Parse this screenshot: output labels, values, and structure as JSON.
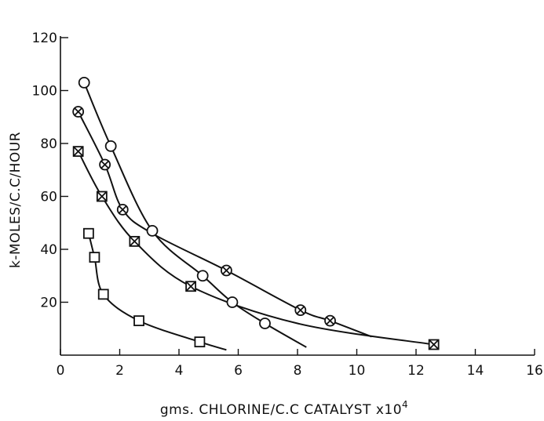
{
  "chart_data": {
    "type": "scatter",
    "title": "",
    "xlabel": "gms. CHLORINE/C.C CATALYST x10",
    "xlabel_superscript": "4",
    "ylabel": "k-MOLES/C.C/HOUR",
    "xlim": [
      0,
      16
    ],
    "ylim": [
      0,
      120
    ],
    "x_ticks": [
      0,
      2,
      4,
      6,
      8,
      10,
      12,
      14,
      16
    ],
    "y_ticks": [
      20,
      40,
      60,
      80,
      100,
      120
    ],
    "x_tick_labels": [
      "0",
      "2",
      "4",
      "6",
      "8",
      "10",
      "12",
      "14",
      "16"
    ],
    "y_tick_labels": [
      "20",
      "40",
      "60",
      "80",
      "100",
      "120"
    ],
    "grid": false,
    "series": [
      {
        "marker": "circle",
        "x": [
          0.8,
          1.7,
          3.1,
          4.8,
          5.8,
          6.9
        ],
        "y": [
          103,
          79,
          47,
          30,
          20,
          12
        ],
        "curve_x": [
          0.8,
          1.7,
          3.1,
          4.8,
          5.8,
          6.9,
          8.3
        ],
        "curve_y": [
          103,
          79,
          47,
          30,
          20,
          12,
          3
        ]
      },
      {
        "marker": "circle-x",
        "x": [
          0.6,
          1.5,
          2.1,
          5.6,
          8.1,
          9.1
        ],
        "y": [
          92,
          72,
          55,
          32,
          17,
          13
        ],
        "curve_x": [
          0.6,
          1.5,
          2.1,
          3.1,
          5.6,
          8.1,
          9.1,
          10.5
        ],
        "curve_y": [
          92,
          72,
          55,
          46,
          32,
          17,
          13,
          7
        ]
      },
      {
        "marker": "square-x",
        "x": [
          0.6,
          1.4,
          2.5,
          4.4,
          12.6
        ],
        "y": [
          77,
          60,
          43,
          26,
          4
        ],
        "curve_x": [
          0.6,
          1.4,
          2.5,
          4.4,
          8.0,
          12.6
        ],
        "curve_y": [
          77,
          60,
          43,
          26,
          12,
          4
        ]
      },
      {
        "marker": "square",
        "x": [
          0.95,
          1.15,
          1.45,
          2.65,
          4.7
        ],
        "y": [
          46,
          37,
          23,
          13,
          5
        ],
        "curve_x": [
          0.95,
          1.15,
          1.45,
          2.65,
          4.7,
          5.6
        ],
        "curve_y": [
          46,
          37,
          23,
          13,
          5,
          2
        ]
      }
    ]
  }
}
